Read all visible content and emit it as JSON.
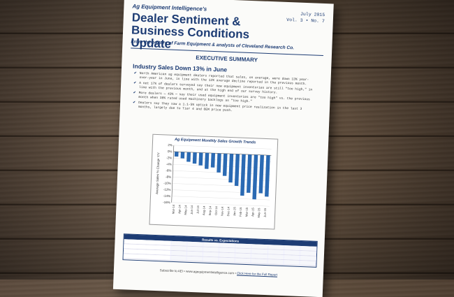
{
  "document": {
    "publication": "Ag Equipment Intelligence's",
    "issue_date": "July 2015",
    "issue_number": "Vol. 3 • No. 7",
    "title_line1": "Dealer Sentiment &",
    "title_line2": "Business Conditions Update",
    "subtitle": "From the editors of Farm Equipment & analysts of Cleveland Research Co.",
    "section": "EXECUTIVE SUMMARY",
    "headline": "Industry Sales Down 13% in June",
    "bullets": [
      "North American ag equipment dealers reported that sales, on average, were down 13% year-over-year in June, in line with the 12% average decline reported in the previous month.",
      "A net 17% of dealers surveyed say their new equipment inventories are still \"too high,\" in line with the previous month, and at the high end of our survey history.",
      "More dealers — 43% — say their used equipment inventories are \"too high\" vs. the previous month when 38% rated used machinery backlogs as \"too high.\"",
      "Dealers say they saw a 1.1-5% uptick in new equipment price realization in the last 3 months, largely due to Tier 4 and OEM price push."
    ],
    "table_title": "Results vs. Expectations",
    "footer_text": "Subscribe to AEI • www.agequipmentintelligence.com •",
    "footer_link": "Click Here for the Full Report"
  },
  "chart_data": {
    "type": "bar",
    "title": "Ag Equipment Monthly Sales Growth Trends",
    "ylabel": "Average Sales % Change Y/Y",
    "ylim": [
      -16,
      2
    ],
    "yticks": [
      "2%",
      "0%",
      "-2%",
      "-4%",
      "-6%",
      "-8%",
      "-10%",
      "-12%",
      "-14%",
      "-16%"
    ],
    "categories": [
      "Mar-14",
      "Apr-14",
      "May-14",
      "Jun-14",
      "Jul-14",
      "Aug-14",
      "Sep-14",
      "Oct-14",
      "Nov-14",
      "Dec-14",
      "Jan-15",
      "Feb-15",
      "Mar-15",
      "Apr-15",
      "May-15",
      "Jun-15"
    ],
    "values": [
      -1.5,
      -2,
      -3,
      -3.5,
      -4,
      -5,
      -4.5,
      -6,
      -7,
      -9,
      -10,
      -13,
      -12,
      -14,
      -12,
      -13
    ],
    "bar_color": "#2b6ab3"
  }
}
